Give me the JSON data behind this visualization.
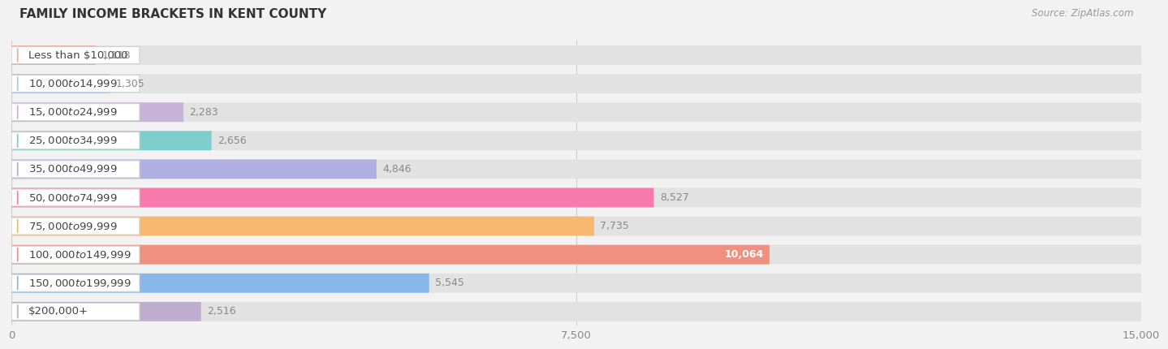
{
  "title": "FAMILY INCOME BRACKETS IN KENT COUNTY",
  "source": "Source: ZipAtlas.com",
  "categories": [
    "Less than $10,000",
    "$10,000 to $14,999",
    "$15,000 to $24,999",
    "$25,000 to $34,999",
    "$35,000 to $49,999",
    "$50,000 to $74,999",
    "$75,000 to $99,999",
    "$100,000 to $149,999",
    "$150,000 to $199,999",
    "$200,000+"
  ],
  "values": [
    1118,
    1305,
    2283,
    2656,
    4846,
    8527,
    7735,
    10064,
    5545,
    2516
  ],
  "bar_colors": [
    "#f5a89e",
    "#a8c8ec",
    "#c8b4d8",
    "#7ecece",
    "#b0b0e0",
    "#f87aab",
    "#f8b870",
    "#f09080",
    "#88b8e8",
    "#c0aed0"
  ],
  "xlim": [
    0,
    15000
  ],
  "xticks": [
    0,
    7500,
    15000
  ],
  "xtick_labels": [
    "0",
    "7,500",
    "15,000"
  ],
  "bg_color": "#f2f2f2",
  "bar_bg_color": "#e2e2e2",
  "title_fontsize": 11,
  "label_fontsize": 9.5,
  "value_fontsize": 9
}
